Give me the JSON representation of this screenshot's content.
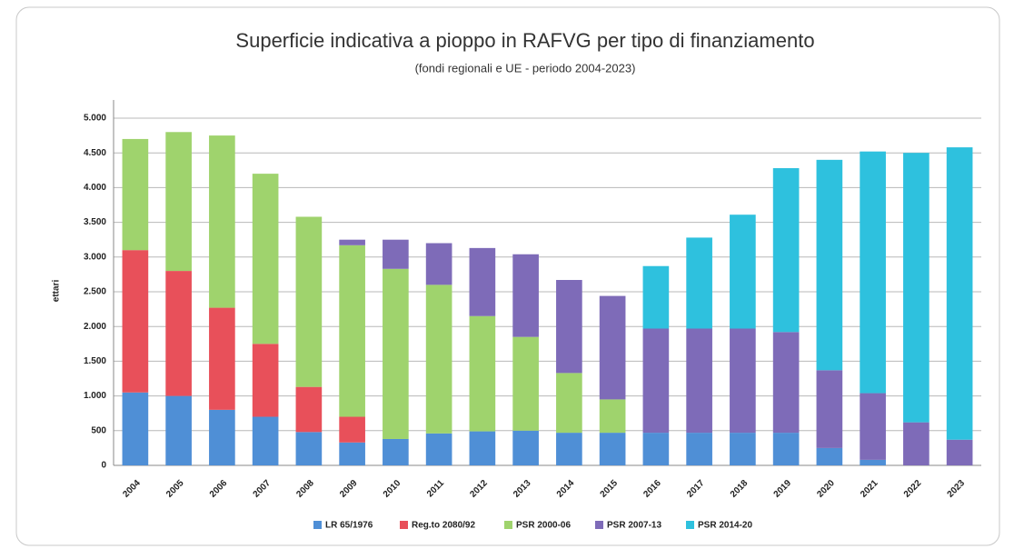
{
  "chart_data": {
    "type": "bar",
    "stacked": true,
    "title": "Superficie indicativa a pioppo in RAFVG per tipo di finanziamento",
    "subtitle": "(fondi regionali e UE - periodo 2004-2023)",
    "y_label": "ettari",
    "categories": [
      "2004",
      "2005",
      "2006",
      "2007",
      "2008",
      "2009",
      "2010",
      "2011",
      "2012",
      "2013",
      "2014",
      "2015",
      "2016",
      "2017",
      "2018",
      "2019",
      "2020",
      "2021",
      "2022",
      "2023"
    ],
    "series": [
      {
        "name": "LR 65/1976",
        "color": "#4f8fd6",
        "values": [
          1050,
          1000,
          800,
          700,
          480,
          330,
          380,
          460,
          490,
          500,
          470,
          470,
          470,
          470,
          470,
          470,
          250,
          80,
          0,
          0
        ]
      },
      {
        "name": "Reg.to 2080/92",
        "color": "#e8505a",
        "values": [
          2050,
          1800,
          1470,
          1050,
          650,
          370,
          0,
          0,
          0,
          0,
          0,
          0,
          0,
          0,
          0,
          0,
          0,
          0,
          0,
          0
        ]
      },
      {
        "name": "PSR 2000-06",
        "color": "#9fd36d",
        "values": [
          1600,
          2000,
          2480,
          2450,
          2450,
          2470,
          2450,
          2140,
          1660,
          1350,
          860,
          480,
          0,
          0,
          0,
          0,
          0,
          0,
          0,
          0
        ]
      },
      {
        "name": "PSR 2007-13",
        "color": "#7e6bb8",
        "values": [
          0,
          0,
          0,
          0,
          0,
          80,
          420,
          600,
          980,
          1190,
          1340,
          1490,
          1500,
          1500,
          1500,
          1450,
          1120,
          960,
          620,
          370
        ]
      },
      {
        "name": "PSR 2014-20",
        "color": "#2ec1de",
        "values": [
          0,
          0,
          0,
          0,
          0,
          0,
          0,
          0,
          0,
          0,
          0,
          0,
          900,
          1310,
          1640,
          2360,
          3030,
          3480,
          3880,
          4210
        ]
      }
    ],
    "ylim": [
      0,
      5000
    ],
    "yticks": [
      0,
      500,
      {
        "value": 1000,
        "label": "1.000"
      },
      {
        "value": 1500,
        "label": "1.500"
      },
      {
        "value": 2000,
        "label": "2.000"
      },
      {
        "value": 2500,
        "label": "2.500"
      },
      {
        "value": 3000,
        "label": "3.000"
      },
      {
        "value": 3500,
        "label": "3.500"
      },
      {
        "value": 4000,
        "label": "4.000"
      },
      {
        "value": 4500,
        "label": "4.500"
      },
      {
        "value": 5000,
        "label": "5.000"
      }
    ],
    "grid": true,
    "legend": "bottom"
  }
}
